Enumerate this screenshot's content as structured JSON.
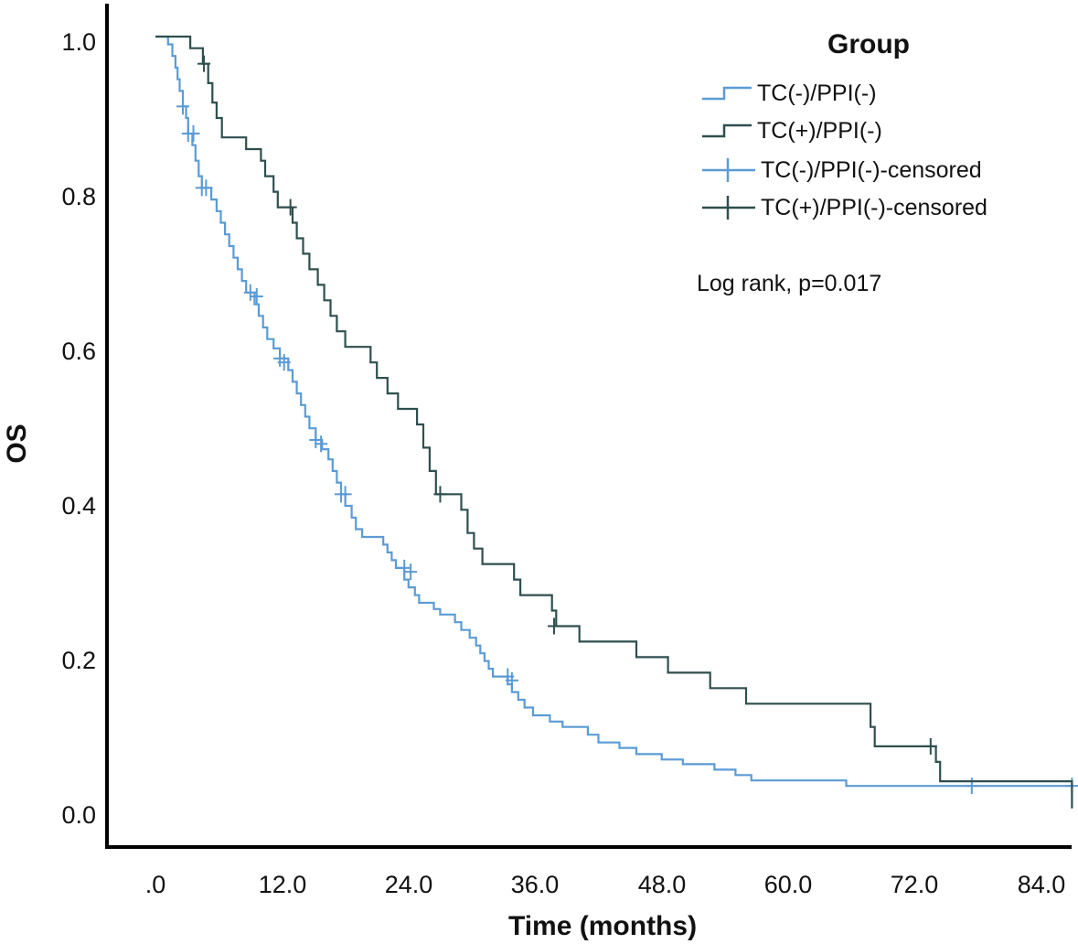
{
  "chart_data": {
    "type": "line",
    "subtype": "kaplan-meier",
    "title": "",
    "xlabel": "Time (months)",
    "ylabel": "OS",
    "xlim": [
      0,
      87
    ],
    "ylim": [
      0,
      1.0
    ],
    "xticks": [
      0,
      12,
      24,
      36,
      48,
      60,
      72,
      84
    ],
    "xtick_labels": [
      ".0",
      "12.0",
      "24.0",
      "36.0",
      "48.0",
      "60.0",
      "72.0",
      "84.0"
    ],
    "yticks": [
      0,
      0.2,
      0.4,
      0.6,
      0.8,
      1.0
    ],
    "ytick_labels": [
      "0.0",
      "0.2",
      "0.4",
      "0.6",
      "0.8",
      "1.0"
    ],
    "legend": {
      "title": "Group",
      "position": "top-right",
      "entries": [
        "TC(-)/PPI(-)",
        "TC(+)/PPI(-)",
        "TC(-)/PPI(-)-censored",
        "TC(+)/PPI(-)-censored"
      ]
    },
    "annotation": "Log rank, p=0.017",
    "series": [
      {
        "name": "TC(-)/PPI(-)",
        "color": "#5b9bd5",
        "censored_name": "TC(-)/PPI(-)-censored",
        "steps": [
          [
            0,
            1.0
          ],
          [
            1.2,
            0.99
          ],
          [
            1.6,
            0.975
          ],
          [
            1.9,
            0.96
          ],
          [
            2.1,
            0.945
          ],
          [
            2.3,
            0.93
          ],
          [
            2.6,
            0.91
          ],
          [
            2.9,
            0.895
          ],
          [
            3.1,
            0.875
          ],
          [
            3.5,
            0.86
          ],
          [
            3.8,
            0.84
          ],
          [
            4.1,
            0.82
          ],
          [
            4.4,
            0.805
          ],
          [
            5.3,
            0.79
          ],
          [
            5.8,
            0.775
          ],
          [
            6.2,
            0.76
          ],
          [
            6.6,
            0.745
          ],
          [
            7.0,
            0.73
          ],
          [
            7.4,
            0.715
          ],
          [
            7.8,
            0.7
          ],
          [
            8.2,
            0.685
          ],
          [
            8.6,
            0.67
          ],
          [
            9.4,
            0.655
          ],
          [
            9.8,
            0.64
          ],
          [
            10.2,
            0.625
          ],
          [
            10.6,
            0.61
          ],
          [
            11.2,
            0.598
          ],
          [
            11.8,
            0.585
          ],
          [
            12.6,
            0.57
          ],
          [
            13.0,
            0.555
          ],
          [
            13.4,
            0.54
          ],
          [
            13.8,
            0.525
          ],
          [
            14.2,
            0.51
          ],
          [
            14.6,
            0.495
          ],
          [
            15.2,
            0.48
          ],
          [
            15.8,
            0.468
          ],
          [
            16.4,
            0.455
          ],
          [
            16.8,
            0.44
          ],
          [
            17.2,
            0.425
          ],
          [
            17.6,
            0.41
          ],
          [
            18.0,
            0.395
          ],
          [
            18.6,
            0.38
          ],
          [
            19.0,
            0.365
          ],
          [
            19.6,
            0.355
          ],
          [
            21.6,
            0.345
          ],
          [
            22.0,
            0.335
          ],
          [
            22.4,
            0.325
          ],
          [
            22.8,
            0.315
          ],
          [
            23.6,
            0.3
          ],
          [
            24.0,
            0.29
          ],
          [
            24.6,
            0.28
          ],
          [
            25.0,
            0.27
          ],
          [
            26.4,
            0.262
          ],
          [
            27.0,
            0.255
          ],
          [
            28.4,
            0.245
          ],
          [
            29.0,
            0.235
          ],
          [
            29.8,
            0.225
          ],
          [
            30.4,
            0.215
          ],
          [
            30.8,
            0.205
          ],
          [
            31.2,
            0.195
          ],
          [
            31.6,
            0.185
          ],
          [
            32.0,
            0.175
          ],
          [
            33.4,
            0.165
          ],
          [
            33.8,
            0.155
          ],
          [
            34.4,
            0.145
          ],
          [
            35.0,
            0.135
          ],
          [
            35.8,
            0.125
          ],
          [
            37.4,
            0.117
          ],
          [
            38.6,
            0.11
          ],
          [
            41.0,
            0.1
          ],
          [
            42.0,
            0.09
          ],
          [
            44.0,
            0.083
          ],
          [
            45.6,
            0.075
          ],
          [
            48.0,
            0.068
          ],
          [
            50.0,
            0.062
          ],
          [
            53.0,
            0.055
          ],
          [
            55.0,
            0.048
          ],
          [
            56.5,
            0.041
          ],
          [
            65.5,
            0.034
          ],
          [
            87,
            0.034
          ]
        ],
        "censored": [
          [
            2.6,
            0.91
          ],
          [
            3.1,
            0.875
          ],
          [
            3.6,
            0.875
          ],
          [
            4.4,
            0.805
          ],
          [
            4.8,
            0.805
          ],
          [
            9.0,
            0.67
          ],
          [
            9.6,
            0.665
          ],
          [
            11.8,
            0.585
          ],
          [
            12.2,
            0.58
          ],
          [
            15.2,
            0.48
          ],
          [
            15.7,
            0.475
          ],
          [
            17.6,
            0.41
          ],
          [
            18.0,
            0.41
          ],
          [
            23.6,
            0.315
          ],
          [
            24.2,
            0.31
          ],
          [
            33.4,
            0.175
          ],
          [
            33.8,
            0.17
          ],
          [
            77.4,
            0.034
          ],
          [
            86.9,
            0.034
          ]
        ]
      },
      {
        "name": "TC(+)/PPI(-)",
        "color": "#2f4f4f",
        "censored_name": "TC(+)/PPI(-)-censored",
        "steps": [
          [
            0,
            1.0
          ],
          [
            3.3,
            0.985
          ],
          [
            4.5,
            0.965
          ],
          [
            5.0,
            0.94
          ],
          [
            5.4,
            0.915
          ],
          [
            5.8,
            0.895
          ],
          [
            6.3,
            0.87
          ],
          [
            8.6,
            0.855
          ],
          [
            10.0,
            0.84
          ],
          [
            10.4,
            0.82
          ],
          [
            11.2,
            0.8
          ],
          [
            11.6,
            0.78
          ],
          [
            13.0,
            0.76
          ],
          [
            13.4,
            0.74
          ],
          [
            14.0,
            0.72
          ],
          [
            14.6,
            0.7
          ],
          [
            15.4,
            0.68
          ],
          [
            16.0,
            0.66
          ],
          [
            16.6,
            0.64
          ],
          [
            17.2,
            0.62
          ],
          [
            18.0,
            0.6
          ],
          [
            20.4,
            0.58
          ],
          [
            21.0,
            0.56
          ],
          [
            22.0,
            0.54
          ],
          [
            23.0,
            0.52
          ],
          [
            24.8,
            0.5
          ],
          [
            25.4,
            0.47
          ],
          [
            26.0,
            0.44
          ],
          [
            26.6,
            0.41
          ],
          [
            29.0,
            0.39
          ],
          [
            29.6,
            0.36
          ],
          [
            30.2,
            0.34
          ],
          [
            31.0,
            0.32
          ],
          [
            34.0,
            0.3
          ],
          [
            34.6,
            0.28
          ],
          [
            37.6,
            0.26
          ],
          [
            38.0,
            0.24
          ],
          [
            40.2,
            0.22
          ],
          [
            45.6,
            0.2
          ],
          [
            48.6,
            0.18
          ],
          [
            52.6,
            0.16
          ],
          [
            56.0,
            0.14
          ],
          [
            67.8,
            0.11
          ],
          [
            68.2,
            0.085
          ],
          [
            74.0,
            0.065
          ],
          [
            74.4,
            0.04
          ],
          [
            86.9,
            0.04
          ],
          [
            86.9,
            0.005
          ]
        ],
        "censored": [
          [
            4.6,
            0.965
          ],
          [
            12.8,
            0.78
          ],
          [
            27.0,
            0.41
          ],
          [
            37.8,
            0.24
          ],
          [
            73.5,
            0.085
          ]
        ]
      }
    ]
  }
}
